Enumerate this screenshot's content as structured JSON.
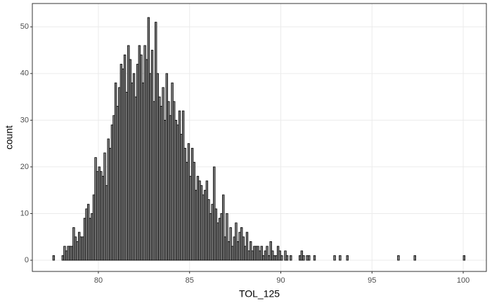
{
  "chart_data": {
    "type": "histogram",
    "xlabel": "TOL_125",
    "ylabel": "count",
    "bins": [
      77.5,
      77.6,
      77.7,
      77.8,
      77.9,
      78.0,
      78.1,
      78.2,
      78.3,
      78.4,
      78.5,
      78.6,
      78.7,
      78.8,
      78.9,
      79.0,
      79.1,
      79.2,
      79.3,
      79.4,
      79.5,
      79.6,
      79.7,
      79.8,
      79.9,
      80.0,
      80.1,
      80.2,
      80.3,
      80.4,
      80.5,
      80.6,
      80.7,
      80.8,
      80.9,
      81.0,
      81.1,
      81.2,
      81.3,
      81.4,
      81.5,
      81.6,
      81.7,
      81.8,
      81.9,
      82.0,
      82.1,
      82.2,
      82.3,
      82.4,
      82.5,
      82.6,
      82.7,
      82.8,
      82.9,
      83.0,
      83.1,
      83.2,
      83.3,
      83.4,
      83.5,
      83.6,
      83.7,
      83.8,
      83.9,
      84.0,
      84.1,
      84.2,
      84.3,
      84.4,
      84.5,
      84.6,
      84.7,
      84.8,
      84.9,
      85.0,
      85.1,
      85.2,
      85.3,
      85.4,
      85.5,
      85.6,
      85.7,
      85.8,
      85.9,
      86.0,
      86.1,
      86.2,
      86.3,
      86.4,
      86.5,
      86.6,
      86.7,
      86.8,
      86.9,
      87.0,
      87.1,
      87.2,
      87.3,
      87.4,
      87.5,
      87.6,
      87.7,
      87.8,
      87.9,
      88.0,
      88.1,
      88.2,
      88.3,
      88.4,
      88.5,
      88.6,
      88.7,
      88.8,
      88.9,
      89.0,
      89.1,
      89.2,
      89.3,
      89.4,
      89.5,
      89.6,
      89.7,
      89.8,
      89.9,
      90.0,
      90.1,
      90.2,
      90.3,
      90.4,
      90.5,
      90.6,
      90.7,
      90.8,
      90.9,
      91.0,
      91.1,
      91.2,
      91.3,
      91.4,
      91.5,
      91.6,
      91.7,
      91.8,
      91.9,
      92.0,
      92.1,
      92.2,
      92.3,
      92.4,
      92.5,
      92.6,
      92.7,
      92.8,
      92.9,
      93.0,
      93.1,
      93.2,
      93.3,
      93.4,
      93.5,
      93.6,
      93.7,
      93.8,
      93.9,
      94.0,
      94.1,
      94.2,
      94.3,
      94.4,
      94.5,
      94.6,
      94.7,
      94.8,
      94.9,
      95.0,
      95.1,
      95.2,
      95.3,
      95.4,
      95.5,
      95.6,
      95.7,
      95.8,
      95.9,
      96.0,
      96.1,
      96.2,
      96.3,
      96.4,
      96.5,
      96.6,
      96.7,
      96.8,
      96.9,
      97.0,
      97.1,
      97.2,
      97.3,
      97.4,
      97.5,
      97.6,
      97.7,
      97.8,
      97.9,
      98.0,
      98.1,
      98.2,
      98.3,
      98.4,
      98.5,
      98.6,
      98.7,
      98.8,
      98.9,
      99.0,
      99.1,
      99.2,
      99.3,
      99.4,
      99.5,
      99.6,
      99.7,
      99.8,
      99.9,
      100.0,
      100.1
    ],
    "values": [
      1,
      0,
      0,
      0,
      0,
      1,
      3,
      2,
      3,
      3,
      3,
      7,
      5,
      4,
      6,
      5,
      5,
      9,
      11,
      12,
      9,
      10,
      14,
      22,
      19,
      20,
      19,
      18,
      23,
      16,
      26,
      24,
      29,
      31,
      38,
      33,
      37,
      42,
      41,
      44,
      36,
      46,
      43,
      38,
      40,
      35,
      42,
      46,
      44,
      38,
      46,
      43,
      52,
      40,
      45,
      34,
      51,
      40,
      35,
      33,
      37,
      30,
      40,
      34,
      31,
      38,
      34,
      30,
      29,
      32,
      27,
      32,
      24,
      21,
      25,
      18,
      24,
      21,
      15,
      18,
      17,
      16,
      14,
      15,
      17,
      13,
      10,
      12,
      20,
      11,
      8,
      9,
      10,
      14,
      5,
      10,
      4,
      7,
      3,
      5,
      8,
      4,
      6,
      7,
      5,
      3,
      6,
      2,
      4,
      2,
      3,
      3,
      3,
      2,
      3,
      1,
      2,
      3,
      1,
      4,
      2,
      1,
      1,
      3,
      2,
      1,
      0,
      2,
      1,
      0,
      1,
      0,
      0,
      0,
      0,
      1,
      2,
      1,
      0,
      1,
      1,
      0,
      0,
      1,
      0,
      0,
      0,
      0,
      0,
      0,
      0,
      0,
      0,
      0,
      1,
      0,
      0,
      1,
      0,
      0,
      0,
      1,
      0,
      0,
      0,
      0,
      0,
      0,
      0,
      0,
      0,
      0,
      0,
      0,
      0,
      0,
      0,
      0,
      0,
      0,
      0,
      0,
      0,
      0,
      0,
      0,
      0,
      0,
      0,
      1,
      0,
      0,
      0,
      0,
      0,
      0,
      0,
      0,
      1,
      0,
      0,
      0,
      0,
      0,
      0,
      0,
      0,
      0,
      0,
      0,
      0,
      0,
      0,
      0,
      0,
      0,
      0,
      0,
      0,
      0,
      0,
      0,
      0,
      0,
      0,
      1
    ],
    "color": "#808080",
    "edgecolor": "#000000",
    "xlim": [
      76.38,
      101.27
    ],
    "xticks": [
      80,
      85,
      90,
      95,
      100
    ],
    "ylim": [
      -2.4,
      55
    ],
    "yticks": [
      0,
      10,
      20,
      30,
      40,
      50
    ],
    "grid": true
  }
}
